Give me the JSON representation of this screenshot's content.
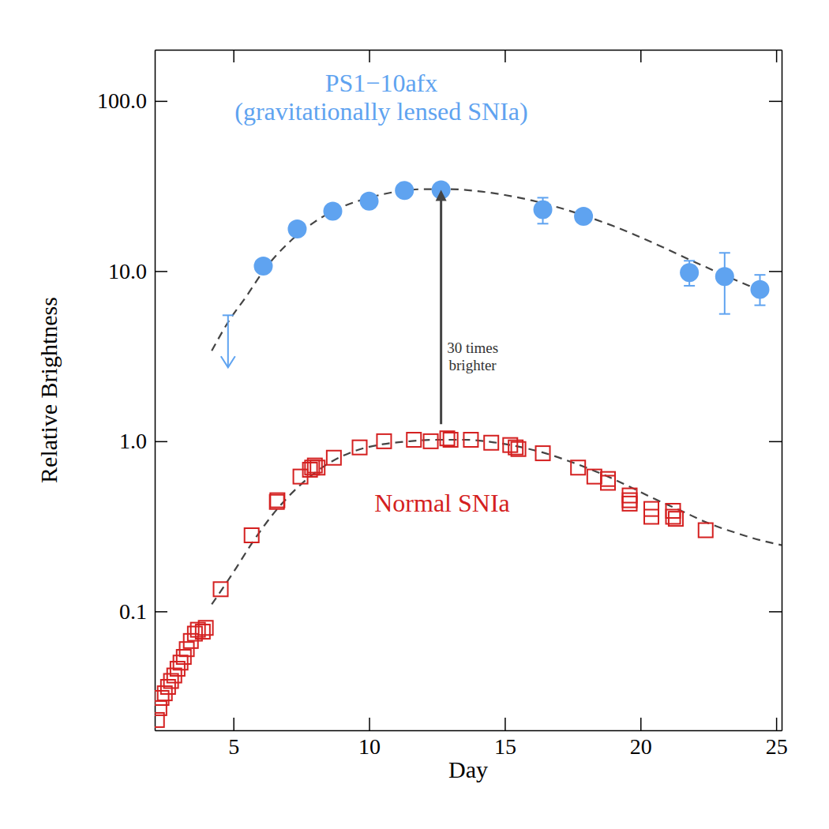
{
  "chart_data": {
    "type": "scatter",
    "x_label": "Day",
    "y_label": "Relative Brightness",
    "log": "y",
    "grid": false,
    "xlim": [
      2.1,
      25.2
    ],
    "ylim": [
      0.02,
      200
    ],
    "xticks": [
      5,
      10,
      15,
      20,
      25
    ],
    "yticks": [
      0.1,
      {
        "value": 1,
        "label": "1.0"
      },
      {
        "value": 10,
        "label": "10.0"
      },
      {
        "value": 100,
        "label": "100.0"
      }
    ],
    "series": [
      {
        "name": "PS1−10afx",
        "type": "scatter",
        "marker": "circle",
        "color": "#5fa3f0",
        "x": [
          6.1,
          7.35,
          8.66,
          10.0,
          11.3,
          12.65,
          16.4,
          17.9,
          21.8,
          23.1,
          24.4
        ],
        "values": [
          10.7,
          17.7,
          22.5,
          25.8,
          29.8,
          30,
          23,
          21,
          9.8,
          9.3,
          7.8
        ],
        "error_low": [
          null,
          null,
          null,
          null,
          null,
          null,
          19,
          null,
          8.2,
          5.6,
          6.3
        ],
        "error_high": [
          null,
          null,
          null,
          null,
          null,
          null,
          27,
          null,
          11.5,
          12.8,
          9.5
        ]
      },
      {
        "name": "Normal SNIa",
        "type": "scatter",
        "marker": "square",
        "color": "#d42020",
        "x": [
          2.18,
          2.27,
          2.35,
          2.47,
          2.59,
          2.7,
          2.82,
          2.94,
          3.05,
          3.17,
          3.28,
          3.43,
          3.58,
          3.69,
          3.87,
          3.98,
          4.53,
          5.67,
          6.6,
          6.62,
          7.47,
          7.82,
          7.9,
          8.0,
          8.1,
          8.7,
          9.65,
          10.55,
          11.65,
          12.27,
          12.88,
          13.0,
          13.75,
          14.5,
          15.2,
          15.4,
          15.5,
          16.4,
          17.7,
          18.3,
          18.8,
          18.8,
          19.6,
          19.6,
          19.6,
          20.4,
          20.4,
          21.2,
          21.2,
          21.3,
          22.4
        ],
        "values": [
          0.023,
          0.027,
          0.031,
          0.033,
          0.036,
          0.039,
          0.042,
          0.046,
          0.05,
          0.054,
          0.06,
          0.067,
          0.074,
          0.078,
          0.076,
          0.08,
          0.135,
          0.28,
          0.44,
          0.45,
          0.62,
          0.68,
          0.7,
          0.72,
          0.7,
          0.8,
          0.92,
          1.0,
          1.02,
          1.0,
          1.04,
          1.02,
          1.02,
          0.98,
          0.95,
          0.92,
          0.9,
          0.85,
          0.7,
          0.62,
          0.6,
          0.57,
          0.48,
          0.45,
          0.43,
          0.4,
          0.36,
          0.39,
          0.36,
          0.35,
          0.3
        ]
      },
      {
        "type": "line",
        "line_style": "dashed",
        "marker": "none",
        "color": "#444444",
        "x": [
          4.2,
          4.8,
          5.5,
          6.1,
          7,
          8,
          9,
          10,
          11,
          12,
          13,
          14,
          15,
          16,
          17,
          18,
          19,
          20,
          21,
          22,
          23,
          24,
          24.6
        ],
        "values": [
          3.4,
          5.0,
          7.2,
          10,
          14.5,
          19.5,
          23.8,
          27,
          29.3,
          30.3,
          30.3,
          29.5,
          28,
          26,
          23.6,
          21,
          18.4,
          15.8,
          13.4,
          11.3,
          9.6,
          8.2,
          7.5
        ]
      },
      {
        "type": "line",
        "line_style": "dashed",
        "marker": "none",
        "color": "#444444",
        "x": [
          4.2,
          5,
          5.67,
          6.5,
          7.5,
          8.5,
          9.5,
          10.5,
          11.5,
          12.5,
          13.5,
          14.5,
          15.5,
          16.5,
          17.5,
          18.5,
          19.5,
          20.5,
          21.5,
          22.5,
          23.5,
          24.5,
          25.2
        ],
        "values": [
          0.11,
          0.17,
          0.25,
          0.38,
          0.56,
          0.74,
          0.88,
          0.96,
          1.0,
          1.02,
          1.02,
          0.99,
          0.93,
          0.85,
          0.75,
          0.65,
          0.55,
          0.46,
          0.39,
          0.33,
          0.29,
          0.26,
          0.245
        ]
      }
    ],
    "upper_limits": {
      "x": [
        4.8
      ],
      "values": [
        5.5
      ],
      "color": "#5fa3f0"
    },
    "annotations": [
      {
        "text": "(gravitationally lensed SNIa)"
      }
    ],
    "arrow": {
      "x": 12.65,
      "from": 1.26,
      "to": 30,
      "text": [
        "30 times",
        "brighter"
      ]
    }
  }
}
